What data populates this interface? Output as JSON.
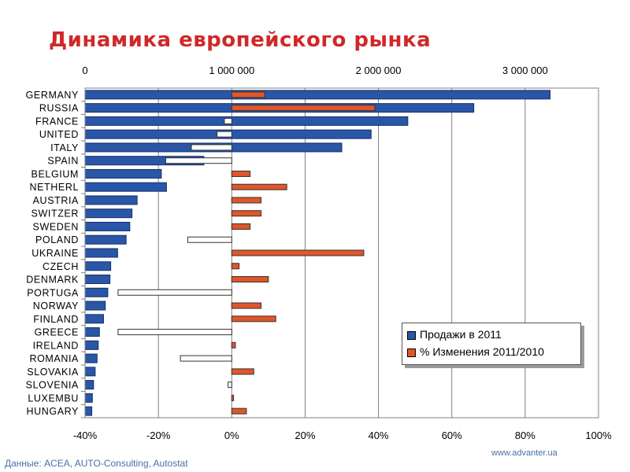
{
  "title": "Динамика европейского рынка",
  "footer": {
    "source": "Данные: ACEA, AUTO-Consulting, Autostat",
    "url": "www.advanter.ua"
  },
  "colors": {
    "title": "#d0282a",
    "sales_bar": "#2a56a8",
    "sales_bar_border": "#14306b",
    "change_positive": "#e0562a",
    "change_negative": "#ffffff",
    "bar_border": "#333333",
    "grid": "#808080"
  },
  "legend": {
    "items": [
      {
        "label": "Продажи в 2011",
        "color": "#2a56a8"
      },
      {
        "label": "% Изменения 2011/2010",
        "color": "#e0562a"
      }
    ]
  },
  "chart_data": {
    "type": "bar",
    "orientation": "horizontal",
    "categories": [
      "GERMANY",
      "RUSSIA",
      "FRANCE",
      "UNITED",
      "ITALY",
      "SPAIN",
      "BELGIUM",
      "NETHERL",
      "AUSTRIA",
      "SWITZER",
      "SWEDEN",
      "POLAND",
      "UKRAINE",
      "CZECH",
      "DENMARK",
      "PORTUGA",
      "NORWAY",
      "FINLAND",
      "GREECE",
      "IRELAND",
      "ROMANIA",
      "SLOVAKIA",
      "SLOVENIA",
      "LUXEMBU",
      "HUNGARY"
    ],
    "series": [
      {
        "name": "Продажи в 2011",
        "axis": "top",
        "values": [
          3170000,
          2650000,
          2200000,
          1950000,
          1750000,
          810000,
          520000,
          555000,
          355000,
          320000,
          305000,
          280000,
          222000,
          175000,
          170000,
          155000,
          138000,
          126000,
          98000,
          90000,
          82000,
          69000,
          58000,
          50000,
          46000
        ]
      },
      {
        "name": "% Изменения 2011/2010",
        "axis": "bottom",
        "values": [
          9,
          39,
          -2,
          -4,
          -11,
          -18,
          5,
          15,
          8,
          8,
          5,
          -12,
          36,
          2,
          10,
          -31,
          8,
          12,
          -31,
          1,
          -14,
          6,
          -1,
          0.5,
          4
        ]
      }
    ],
    "top_axis": {
      "range": [
        0,
        3500000
      ],
      "ticks": [
        0,
        1000000,
        2000000,
        3000000
      ],
      "tick_labels": [
        "0",
        "1 000 000",
        "2 000 000",
        "3 000 000"
      ]
    },
    "bottom_axis": {
      "range": [
        -40,
        100
      ],
      "ticks": [
        -40,
        -20,
        0,
        20,
        40,
        60,
        80,
        100
      ],
      "tick_labels": [
        "-40%",
        "-20%",
        "0%",
        "20%",
        "40%",
        "60%",
        "80%",
        "100%"
      ]
    },
    "grid": true,
    "legend_position": "bottom-right"
  }
}
